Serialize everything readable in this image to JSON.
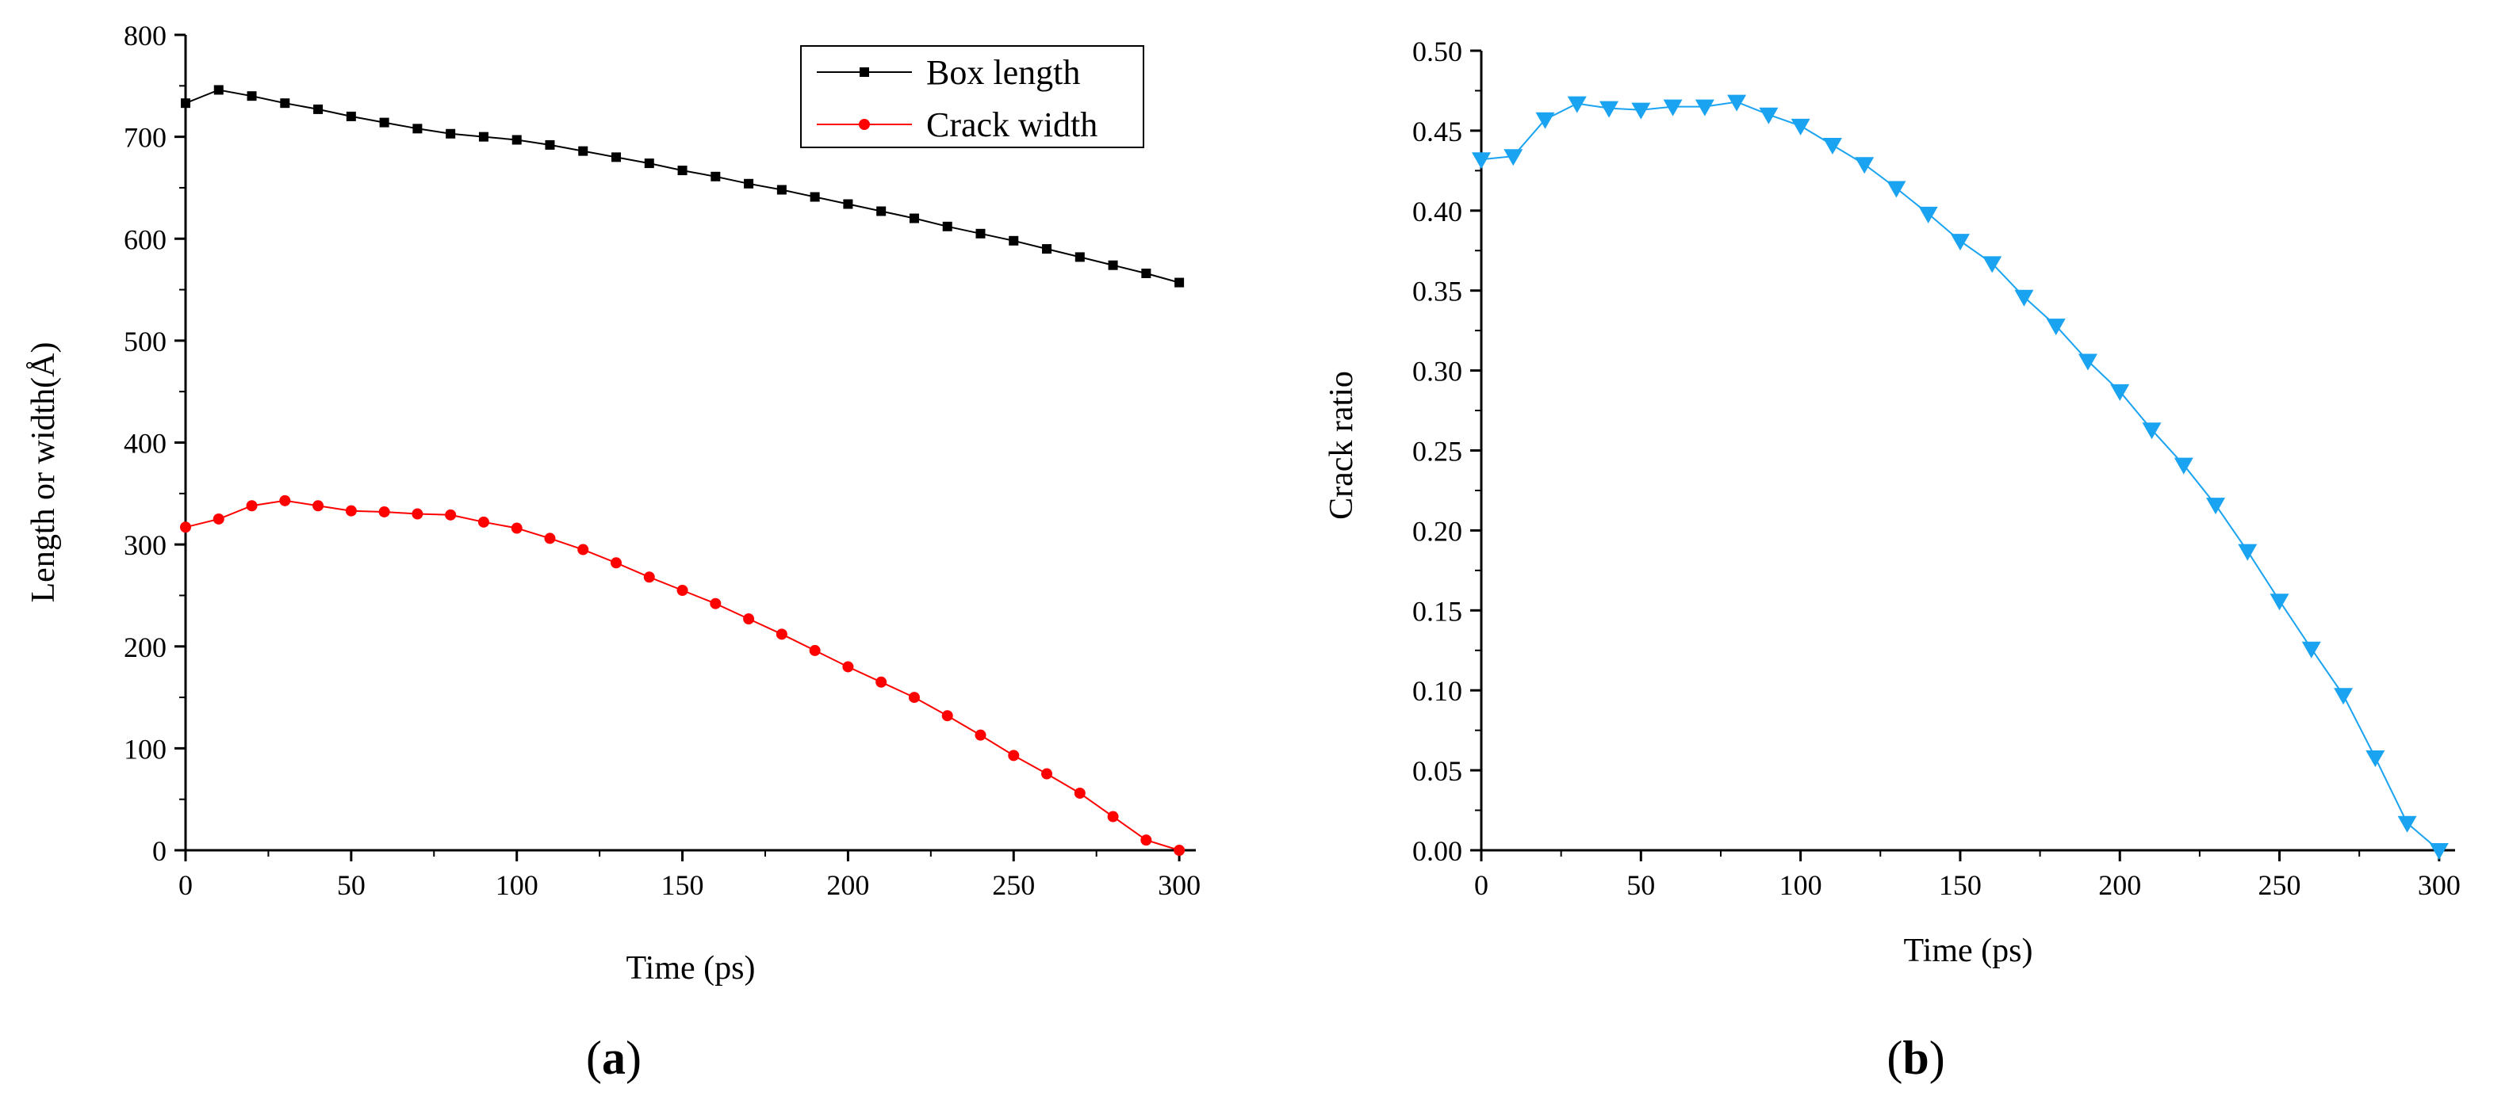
{
  "chart_data": [
    {
      "type": "line",
      "panel": "a",
      "xlabel": "Time (ps)",
      "ylabel": "Length or width(Å)",
      "xlim": [
        0,
        305
      ],
      "ylim": [
        0,
        800
      ],
      "xticks": [
        0,
        50,
        100,
        150,
        200,
        250,
        300
      ],
      "yticks": [
        0,
        100,
        200,
        300,
        400,
        500,
        600,
        700,
        800
      ],
      "legend_position": "top-right",
      "series": [
        {
          "name": "Box length",
          "color": "#000000",
          "marker": "square",
          "x": [
            0,
            10,
            20,
            30,
            40,
            50,
            60,
            70,
            80,
            90,
            100,
            110,
            120,
            130,
            140,
            150,
            160,
            170,
            180,
            190,
            200,
            210,
            220,
            230,
            240,
            250,
            260,
            270,
            280,
            290,
            300
          ],
          "values": [
            733,
            746,
            740,
            733,
            727,
            720,
            714,
            708,
            703,
            700,
            697,
            692,
            686,
            680,
            674,
            667,
            661,
            654,
            648,
            641,
            634,
            627,
            620,
            612,
            605,
            598,
            590,
            582,
            574,
            566,
            557
          ]
        },
        {
          "name": "Crack width",
          "color": "#ff0000",
          "marker": "circle",
          "x": [
            0,
            10,
            20,
            30,
            40,
            50,
            60,
            70,
            80,
            90,
            100,
            110,
            120,
            130,
            140,
            150,
            160,
            170,
            180,
            190,
            200,
            210,
            220,
            230,
            240,
            250,
            260,
            270,
            280,
            290,
            300
          ],
          "values": [
            317,
            325,
            338,
            343,
            338,
            333,
            332,
            330,
            329,
            322,
            316,
            306,
            295,
            282,
            268,
            255,
            242,
            227,
            212,
            196,
            180,
            165,
            150,
            132,
            113,
            93,
            75,
            56,
            33,
            10,
            0
          ]
        }
      ]
    },
    {
      "type": "line",
      "panel": "b",
      "xlabel": "Time (ps)",
      "ylabel": "Crack ratio",
      "xlim": [
        0,
        305
      ],
      "ylim": [
        0,
        0.5
      ],
      "xticks": [
        0,
        50,
        100,
        150,
        200,
        250,
        300
      ],
      "yticks": [
        "0.00",
        "0.05",
        "0.10",
        "0.15",
        "0.20",
        "0.25",
        "0.30",
        "0.35",
        "0.40",
        "0.45",
        "0.50"
      ],
      "series": [
        {
          "name": "Crack ratio",
          "color": "#1aa3f0",
          "marker": "triangle-down",
          "x": [
            0,
            10,
            20,
            30,
            40,
            50,
            60,
            70,
            80,
            90,
            100,
            110,
            120,
            130,
            140,
            150,
            160,
            170,
            180,
            190,
            200,
            210,
            220,
            230,
            240,
            250,
            260,
            270,
            280,
            290,
            300
          ],
          "values": [
            0.432,
            0.434,
            0.457,
            0.467,
            0.464,
            0.463,
            0.465,
            0.465,
            0.468,
            0.46,
            0.453,
            0.441,
            0.429,
            0.414,
            0.398,
            0.381,
            0.367,
            0.346,
            0.328,
            0.306,
            0.287,
            0.263,
            0.241,
            0.216,
            0.187,
            0.156,
            0.126,
            0.097,
            0.058,
            0.017,
            0.0
          ]
        }
      ]
    }
  ],
  "panel_labels": [
    {
      "open": "(",
      "letter": "a",
      "close": ")"
    },
    {
      "open": "(",
      "letter": "b",
      "close": ")"
    }
  ]
}
